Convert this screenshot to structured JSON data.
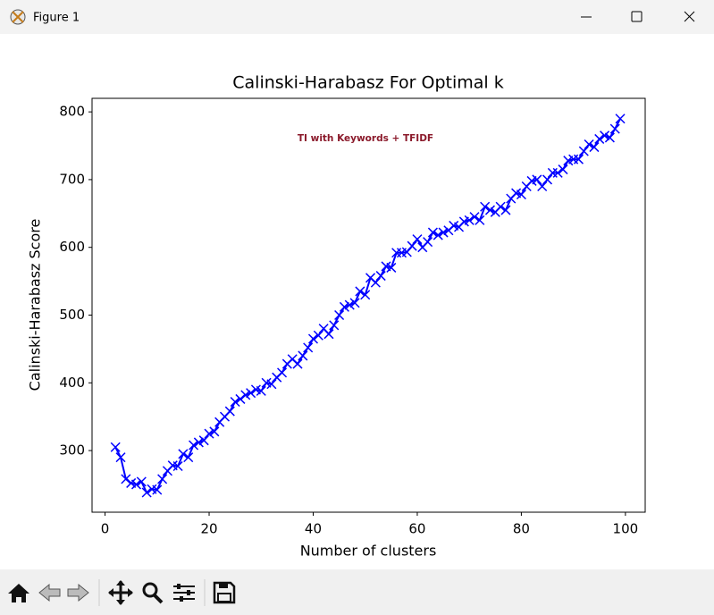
{
  "window": {
    "title": "Figure 1"
  },
  "chart_data": {
    "type": "line",
    "title": "Calinski-Harabasz For Optimal k",
    "annotation": "TI with Keywords + TFIDF",
    "x_label": "Number of clusters",
    "y_label": "Calinski-Harabasz Score",
    "x": [
      2,
      3,
      4,
      5,
      6,
      7,
      8,
      9,
      10,
      11,
      12,
      13,
      14,
      15,
      16,
      17,
      18,
      19,
      20,
      21,
      22,
      23,
      24,
      25,
      26,
      27,
      28,
      29,
      30,
      31,
      32,
      33,
      34,
      35,
      36,
      37,
      38,
      39,
      40,
      41,
      42,
      43,
      44,
      45,
      46,
      47,
      48,
      49,
      50,
      51,
      52,
      53,
      54,
      55,
      56,
      57,
      58,
      59,
      60,
      61,
      62,
      63,
      64,
      65,
      66,
      67,
      68,
      69,
      70,
      71,
      72,
      73,
      74,
      75,
      76,
      77,
      78,
      79,
      80,
      81,
      82,
      83,
      84,
      85,
      86,
      87,
      88,
      89,
      90,
      91,
      92,
      93,
      94,
      95,
      96,
      97,
      98,
      99
    ],
    "series": [
      {
        "color": "#0000ff",
        "marker": "x",
        "values": [
          305,
          290,
          258,
          252,
          250,
          254,
          238,
          243,
          242,
          258,
          270,
          278,
          277,
          295,
          290,
          308,
          312,
          315,
          325,
          328,
          342,
          350,
          358,
          372,
          376,
          382,
          385,
          390,
          388,
          400,
          398,
          408,
          415,
          428,
          435,
          428,
          440,
          452,
          465,
          470,
          480,
          472,
          485,
          500,
          512,
          515,
          518,
          535,
          530,
          555,
          548,
          558,
          572,
          570,
          592,
          592,
          593,
          602,
          612,
          600,
          608,
          622,
          618,
          622,
          625,
          632,
          630,
          638,
          640,
          645,
          640,
          660,
          655,
          652,
          660,
          655,
          672,
          680,
          678,
          690,
          698,
          700,
          690,
          700,
          710,
          710,
          715,
          728,
          730,
          730,
          742,
          752,
          748,
          760,
          765,
          762,
          775,
          790
        ]
      }
    ],
    "xlim": [
      -2.5,
      103.8
    ],
    "ylim": [
      209,
      820
    ],
    "xticks": [
      0,
      20,
      40,
      60,
      80,
      100
    ],
    "yticks": [
      300,
      400,
      500,
      600,
      700,
      800
    ],
    "grid": false
  }
}
